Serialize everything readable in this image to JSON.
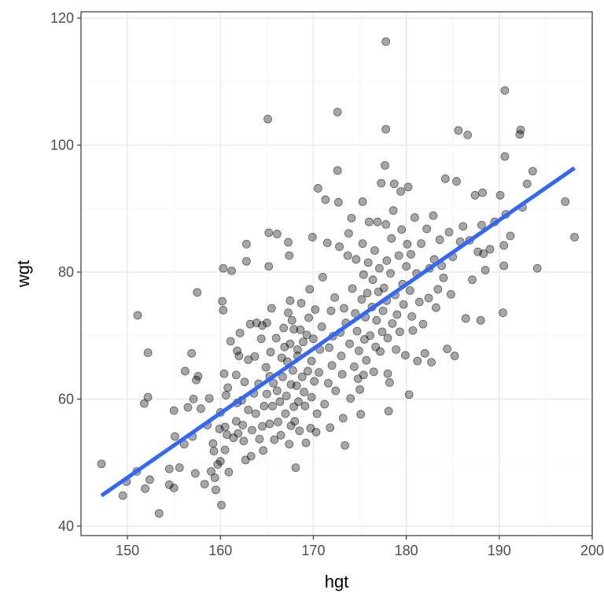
{
  "chart_data": {
    "type": "scatter",
    "title": "",
    "xlabel": "hgt",
    "ylabel": "wgt",
    "xlim": [
      145,
      200
    ],
    "ylim": [
      38.5,
      121
    ],
    "xticks": [
      150,
      160,
      170,
      180,
      190,
      200
    ],
    "yticks": [
      40,
      60,
      80,
      100,
      120
    ],
    "xtick_labels": [
      "150",
      "160",
      "170",
      "180",
      "190",
      "200"
    ],
    "ytick_labels": [
      "40",
      "60",
      "80",
      "100",
      "120"
    ],
    "grid": true,
    "legend": "none",
    "colors": {
      "points": "#000000",
      "fit_line": "#3366ff",
      "grid_major": "#ebebeb",
      "grid_minor": "#f5f5f5",
      "panel_border": "#333333"
    },
    "fit_line": {
      "x": [
        147.2,
        198.1
      ],
      "y": [
        44.8,
        96.4
      ]
    },
    "series": [
      {
        "points": [
          [
            147.2,
            49.8
          ],
          [
            149.5,
            44.8
          ],
          [
            149.9,
            47.0
          ],
          [
            151.0,
            48.6
          ],
          [
            151.1,
            73.2
          ],
          [
            151.8,
            59.3
          ],
          [
            151.9,
            45.9
          ],
          [
            152.2,
            67.3
          ],
          [
            152.2,
            60.3
          ],
          [
            152.4,
            47.3
          ],
          [
            153.4,
            42.0
          ],
          [
            154.5,
            49.0
          ],
          [
            154.5,
            46.5
          ],
          [
            155.0,
            46.0
          ],
          [
            155.1,
            54.1
          ],
          [
            155.0,
            58.2
          ],
          [
            155.6,
            49.2
          ],
          [
            156.2,
            64.4
          ],
          [
            156.1,
            52.9
          ],
          [
            156.5,
            58.7
          ],
          [
            156.9,
            67.2
          ],
          [
            157.0,
            54.1
          ],
          [
            157.1,
            60.0
          ],
          [
            157.4,
            63.0
          ],
          [
            157.3,
            48.3
          ],
          [
            157.5,
            76.8
          ],
          [
            157.6,
            63.6
          ],
          [
            157.9,
            58.5
          ],
          [
            158.3,
            46.6
          ],
          [
            158.6,
            55.9
          ],
          [
            158.8,
            60.1
          ],
          [
            159.0,
            48.6
          ],
          [
            159.2,
            53.0
          ],
          [
            159.3,
            51.8
          ],
          [
            159.4,
            47.6
          ],
          [
            159.5,
            45.7
          ],
          [
            159.7,
            49.7
          ],
          [
            159.9,
            55.3
          ],
          [
            160.0,
            57.9
          ],
          [
            160.0,
            50.2
          ],
          [
            160.1,
            43.3
          ],
          [
            160.2,
            75.4
          ],
          [
            160.3,
            74.0
          ],
          [
            160.3,
            80.6
          ],
          [
            160.4,
            64.0
          ],
          [
            160.5,
            55.6
          ],
          [
            160.5,
            52.0
          ],
          [
            160.6,
            60.6
          ],
          [
            160.7,
            54.4
          ],
          [
            160.8,
            61.8
          ],
          [
            160.9,
            48.5
          ],
          [
            161.1,
            69.1
          ],
          [
            161.2,
            80.2
          ],
          [
            161.4,
            53.9
          ],
          [
            161.7,
            63.8
          ],
          [
            161.7,
            56.5
          ],
          [
            161.8,
            59.4
          ],
          [
            161.8,
            67.6
          ],
          [
            161.9,
            54.6
          ],
          [
            162.1,
            70.4
          ],
          [
            162.0,
            66.8
          ],
          [
            162.3,
            59.8
          ],
          [
            162.4,
            55.9
          ],
          [
            162.5,
            53.4
          ],
          [
            162.6,
            62.7
          ],
          [
            162.7,
            50.4
          ],
          [
            162.8,
            84.4
          ],
          [
            162.8,
            81.7
          ],
          [
            163.0,
            58.3
          ],
          [
            163.0,
            66.2
          ],
          [
            163.2,
            71.8
          ],
          [
            163.3,
            51.0
          ],
          [
            163.4,
            55.1
          ],
          [
            163.6,
            60.9
          ],
          [
            163.7,
            66.7
          ],
          [
            163.8,
            57.7
          ],
          [
            163.9,
            72.0
          ],
          [
            164.1,
            62.4
          ],
          [
            164.2,
            53.7
          ],
          [
            164.4,
            69.5
          ],
          [
            164.5,
            71.6
          ],
          [
            164.5,
            55.7
          ],
          [
            164.6,
            51.9
          ],
          [
            164.7,
            58.9
          ],
          [
            164.9,
            65.0
          ],
          [
            165.0,
            60.8
          ],
          [
            165.0,
            72.0
          ],
          [
            165.1,
            104.1
          ],
          [
            165.2,
            86.2
          ],
          [
            165.2,
            80.9
          ],
          [
            165.3,
            63.6
          ],
          [
            165.3,
            56.1
          ],
          [
            165.4,
            67.4
          ],
          [
            165.5,
            74.3
          ],
          [
            165.6,
            58.9
          ],
          [
            165.7,
            62.5
          ],
          [
            165.8,
            53.6
          ],
          [
            166.0,
            69.6
          ],
          [
            166.1,
            61.3
          ],
          [
            166.1,
            86.0
          ],
          [
            166.2,
            56.4
          ],
          [
            166.4,
            59.6
          ],
          [
            166.5,
            54.3
          ],
          [
            166.6,
            66.5
          ],
          [
            166.7,
            63.5
          ],
          [
            166.8,
            71.2
          ],
          [
            166.9,
            68.2
          ],
          [
            167.0,
            57.7
          ],
          [
            167.1,
            60.5
          ],
          [
            167.2,
            65.9
          ],
          [
            167.3,
            73.6
          ],
          [
            167.3,
            84.7
          ],
          [
            167.4,
            82.6
          ],
          [
            167.4,
            52.9
          ],
          [
            167.5,
            75.5
          ],
          [
            167.5,
            68.7
          ],
          [
            167.6,
            62.3
          ],
          [
            167.6,
            55.8
          ],
          [
            167.7,
            72.4
          ],
          [
            167.8,
            64.5
          ],
          [
            167.9,
            58.8
          ],
          [
            167.9,
            71.0
          ],
          [
            168.0,
            56.5
          ],
          [
            168.1,
            49.2
          ],
          [
            168.2,
            62.1
          ],
          [
            168.3,
            66.8
          ],
          [
            168.3,
            67.8
          ],
          [
            168.4,
            59.6
          ],
          [
            168.5,
            55.0
          ],
          [
            168.6,
            70.9
          ],
          [
            168.7,
            75.1
          ],
          [
            168.8,
            63.5
          ],
          [
            168.9,
            69.0
          ],
          [
            169.0,
            61.1
          ],
          [
            169.1,
            58.9
          ],
          [
            169.2,
            53.1
          ],
          [
            169.3,
            70.1
          ],
          [
            169.4,
            64.4
          ],
          [
            169.5,
            72.8
          ],
          [
            169.6,
            77.3
          ],
          [
            169.7,
            55.4
          ],
          [
            169.8,
            60.3
          ],
          [
            169.8,
            66.0
          ],
          [
            169.9,
            85.5
          ],
          [
            170.0,
            69.5
          ],
          [
            170.1,
            62.8
          ],
          [
            170.2,
            74.1
          ],
          [
            170.3,
            54.8
          ],
          [
            170.4,
            57.7
          ],
          [
            170.5,
            93.2
          ],
          [
            170.6,
            64.2
          ],
          [
            170.7,
            67.8
          ],
          [
            170.9,
            71.4
          ],
          [
            171.0,
            79.2
          ],
          [
            171.2,
            59.2
          ],
          [
            171.3,
            91.4
          ],
          [
            171.5,
            84.6
          ],
          [
            171.6,
            62.5
          ],
          [
            171.7,
            68.1
          ],
          [
            171.8,
            55.5
          ],
          [
            171.9,
            73.9
          ],
          [
            172.0,
            65.3
          ],
          [
            172.1,
            69.9
          ],
          [
            172.3,
            76.0
          ],
          [
            172.4,
            61.3
          ],
          [
            172.6,
            96.0
          ],
          [
            172.6,
            105.2
          ],
          [
            172.7,
            91.0
          ],
          [
            172.8,
            84.0
          ],
          [
            172.9,
            70.5
          ],
          [
            173.0,
            66.8
          ],
          [
            173.1,
            63.9
          ],
          [
            173.2,
            57.0
          ],
          [
            173.3,
            74.3
          ],
          [
            173.4,
            52.7
          ],
          [
            173.5,
            72.0
          ],
          [
            173.7,
            82.6
          ],
          [
            173.8,
            86.1
          ],
          [
            173.9,
            68.7
          ],
          [
            174.0,
            60.1
          ],
          [
            174.1,
            88.5
          ],
          [
            174.2,
            77.4
          ],
          [
            174.4,
            65.1
          ],
          [
            174.5,
            73.5
          ],
          [
            174.6,
            82.0
          ],
          [
            174.7,
            70.7
          ],
          [
            174.8,
            63.2
          ],
          [
            174.9,
            67.6
          ],
          [
            175.0,
            61.5
          ],
          [
            175.1,
            57.6
          ],
          [
            175.2,
            75.7
          ],
          [
            175.3,
            91.1
          ],
          [
            175.3,
            84.5
          ],
          [
            175.4,
            79.6
          ],
          [
            175.4,
            63.8
          ],
          [
            175.5,
            69.4
          ],
          [
            175.6,
            72.9
          ],
          [
            175.7,
            66.1
          ],
          [
            175.8,
            76.7
          ],
          [
            175.9,
            81.5
          ],
          [
            176.0,
            87.9
          ],
          [
            176.1,
            70.0
          ],
          [
            176.3,
            74.5
          ],
          [
            176.4,
            78.8
          ],
          [
            176.5,
            64.3
          ],
          [
            176.6,
            83.4
          ],
          [
            176.7,
            68.2
          ],
          [
            176.8,
            72.4
          ],
          [
            176.9,
            87.9
          ],
          [
            177.0,
            76.9
          ],
          [
            177.1,
            80.6
          ],
          [
            177.2,
            67.5
          ],
          [
            177.3,
            94.0
          ],
          [
            177.4,
            70.6
          ],
          [
            177.5,
            73.9
          ],
          [
            177.6,
            77.5
          ],
          [
            177.7,
            96.8
          ],
          [
            177.8,
            116.3
          ],
          [
            177.8,
            102.5
          ],
          [
            177.8,
            87.5
          ],
          [
            177.9,
            81.8
          ],
          [
            177.9,
            75.5
          ],
          [
            178.0,
            69.6
          ],
          [
            178.0,
            64.0
          ],
          [
            178.1,
            58.1
          ],
          [
            178.2,
            62.6
          ],
          [
            178.3,
            79.8
          ],
          [
            178.4,
            85.3
          ],
          [
            178.5,
            71.9
          ],
          [
            178.6,
            89.7
          ],
          [
            178.7,
            93.9
          ],
          [
            178.8,
            76.4
          ],
          [
            178.9,
            67.8
          ],
          [
            179.0,
            73.3
          ],
          [
            179.2,
            82.6
          ],
          [
            179.3,
            70.6
          ],
          [
            179.4,
            92.7
          ],
          [
            179.5,
            86.7
          ],
          [
            179.6,
            78.1
          ],
          [
            179.7,
            74.9
          ],
          [
            179.9,
            66.9
          ],
          [
            180.0,
            80.9
          ],
          [
            180.1,
            84.4
          ],
          [
            180.2,
            93.4
          ],
          [
            180.3,
            60.7
          ],
          [
            180.4,
            77.1
          ],
          [
            180.5,
            82.8
          ],
          [
            180.6,
            73.0
          ],
          [
            180.7,
            70.8
          ],
          [
            180.9,
            88.6
          ],
          [
            181.1,
            79.8
          ],
          [
            181.2,
            66.0
          ],
          [
            181.4,
            75.3
          ],
          [
            181.6,
            84.5
          ],
          [
            181.8,
            71.8
          ],
          [
            182.0,
            67.2
          ],
          [
            182.2,
            86.8
          ],
          [
            182.4,
            75.9
          ],
          [
            182.5,
            80.6
          ],
          [
            182.7,
            65.8
          ],
          [
            182.9,
            88.9
          ],
          [
            183.0,
            82.0
          ],
          [
            183.2,
            74.4
          ],
          [
            183.4,
            77.3
          ],
          [
            183.6,
            85.1
          ],
          [
            183.8,
            81.0
          ],
          [
            184.0,
            79.1
          ],
          [
            184.2,
            94.7
          ],
          [
            184.4,
            67.9
          ],
          [
            184.6,
            86.3
          ],
          [
            184.8,
            76.5
          ],
          [
            185.0,
            82.4
          ],
          [
            185.2,
            66.8
          ],
          [
            185.4,
            94.3
          ],
          [
            185.6,
            102.3
          ],
          [
            185.8,
            84.8
          ],
          [
            186.1,
            87.2
          ],
          [
            186.4,
            72.7
          ],
          [
            186.6,
            101.6
          ],
          [
            186.8,
            85.0
          ],
          [
            187.1,
            78.8
          ],
          [
            187.4,
            92.1
          ],
          [
            187.7,
            83.2
          ],
          [
            188.0,
            72.4
          ],
          [
            188.1,
            87.4
          ],
          [
            188.2,
            92.5
          ],
          [
            188.3,
            82.9
          ],
          [
            188.5,
            80.3
          ],
          [
            189.0,
            83.6
          ],
          [
            189.5,
            87.9
          ],
          [
            190.1,
            92.1
          ],
          [
            190.4,
            73.6
          ],
          [
            190.5,
            81.0
          ],
          [
            190.5,
            84.2
          ],
          [
            190.6,
            98.2
          ],
          [
            190.6,
            108.6
          ],
          [
            190.7,
            89.1
          ],
          [
            191.2,
            85.7
          ],
          [
            192.2,
            101.7
          ],
          [
            192.3,
            102.4
          ],
          [
            192.5,
            90.2
          ],
          [
            193.0,
            93.9
          ],
          [
            193.6,
            95.9
          ],
          [
            194.1,
            80.6
          ],
          [
            197.1,
            91.1
          ],
          [
            198.1,
            85.5
          ]
        ]
      }
    ]
  }
}
